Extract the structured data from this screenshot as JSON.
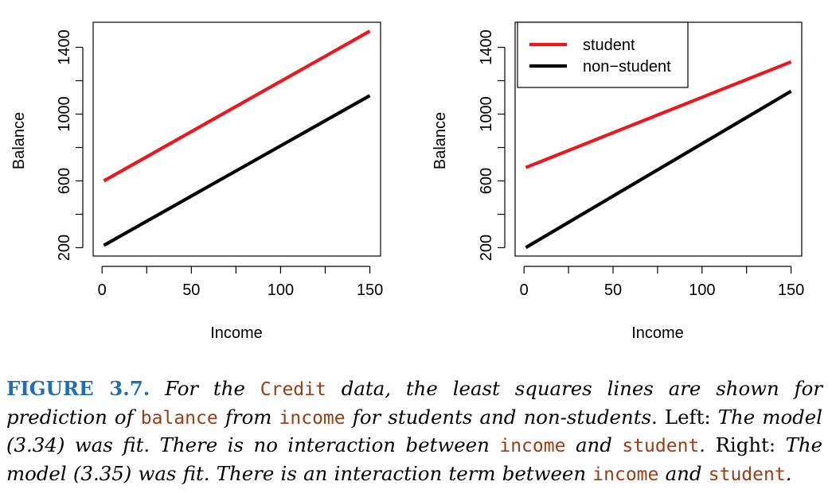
{
  "chart_data": [
    {
      "type": "line",
      "panel": "left",
      "xlabel": "Income",
      "ylabel": "Balance",
      "xlim": [
        -5,
        156
      ],
      "ylim": [
        150,
        1550
      ],
      "xticks": [
        0,
        50,
        100,
        150
      ],
      "yticks": [
        200,
        600,
        1000,
        1400
      ],
      "series": [
        {
          "name": "student",
          "color": "#e8191f",
          "x": [
            1,
            150
          ],
          "y": [
            600,
            1497
          ]
        },
        {
          "name": "non-student",
          "color": "#000000",
          "x": [
            1,
            150
          ],
          "y": [
            214,
            1111
          ]
        }
      ],
      "legend": null
    },
    {
      "type": "line",
      "panel": "right",
      "xlabel": "Income",
      "ylabel": "Balance",
      "xlim": [
        -5,
        156
      ],
      "ylim": [
        150,
        1550
      ],
      "xticks": [
        0,
        50,
        100,
        150
      ],
      "yticks": [
        200,
        600,
        1000,
        1400
      ],
      "series": [
        {
          "name": "student",
          "color": "#e8191f",
          "x": [
            1,
            150
          ],
          "y": [
            680,
            1313
          ]
        },
        {
          "name": "non-student",
          "color": "#000000",
          "x": [
            1,
            150
          ],
          "y": [
            201,
            1137
          ]
        }
      ],
      "legend": {
        "position": "top-left",
        "entries": [
          {
            "label": "student",
            "color": "#e8191f"
          },
          {
            "label": "non−student",
            "color": "#000000"
          }
        ]
      }
    }
  ],
  "caption": {
    "figure_label": "FIGURE 3.7.",
    "t1": " For the ",
    "c1": "Credit",
    "t2": " data, the least squares lines are shown for prediction of ",
    "c2": "balance",
    "t3": " from ",
    "c3": "income",
    "t4": " for students and non-students. ",
    "r1": "Left:",
    "t5": " The model (3.34) was fit. There is no interaction between ",
    "c4": "income",
    "t6": " and ",
    "c5": "student",
    "t7": ". ",
    "r2": "Right:",
    "t8": " The model (3.35) was fit. There is an interaction term between ",
    "c6": "income",
    "t9": " and ",
    "c7": "student",
    "t10": "."
  }
}
